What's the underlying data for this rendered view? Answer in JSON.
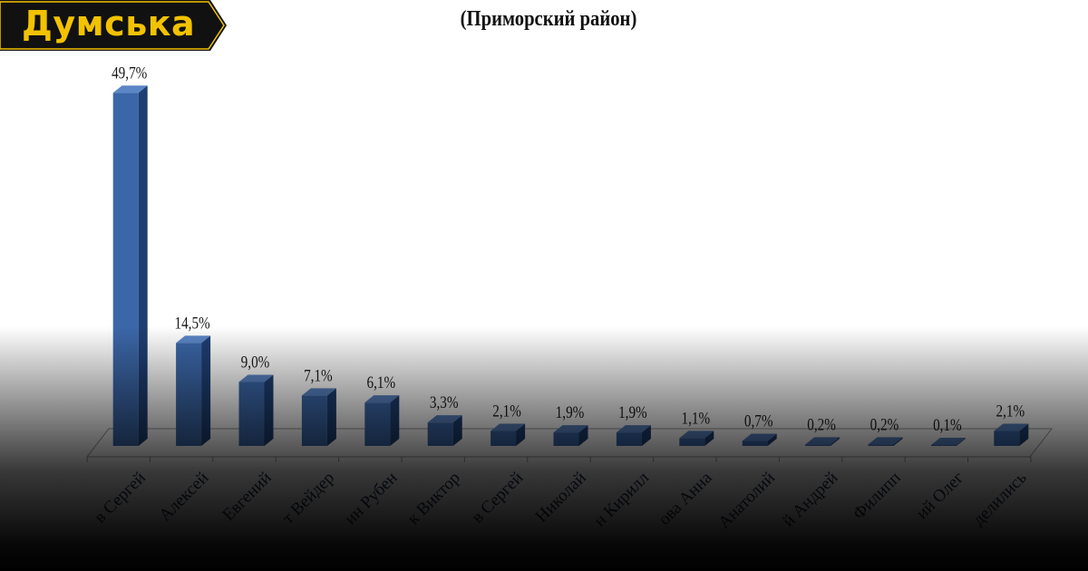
{
  "logo": {
    "text": "Думська"
  },
  "chart_data": {
    "type": "bar",
    "title": "(Приморский район)",
    "categories": [
      "в Сергей",
      "Алексей",
      "Евгений",
      "т Вейдер",
      "ин Рубен",
      "к Виктор",
      "в Сергей",
      "Николай",
      "н Кирилл",
      "ова Анна",
      "Анатолий",
      "й Андрей",
      "Филипп",
      "ий Олег",
      "делились"
    ],
    "values": [
      49.7,
      14.5,
      9.0,
      7.1,
      6.1,
      3.3,
      2.1,
      1.9,
      1.9,
      1.1,
      0.7,
      0.2,
      0.2,
      0.1,
      2.1
    ],
    "data_labels": [
      "49,7%",
      "14,5%",
      "9,0%",
      "7,1%",
      "6,1%",
      "3,3%",
      "2,1%",
      "1,9%",
      "1,9%",
      "1,1%",
      "0,7%",
      "0,2%",
      "0,2%",
      "0,1%",
      "2,1%"
    ],
    "ylim": [
      0,
      50
    ],
    "grid": false,
    "colors": {
      "bar_front": "#3b67a8",
      "bar_side": "#1e3f72",
      "bar_top": "#5b86c6"
    }
  }
}
